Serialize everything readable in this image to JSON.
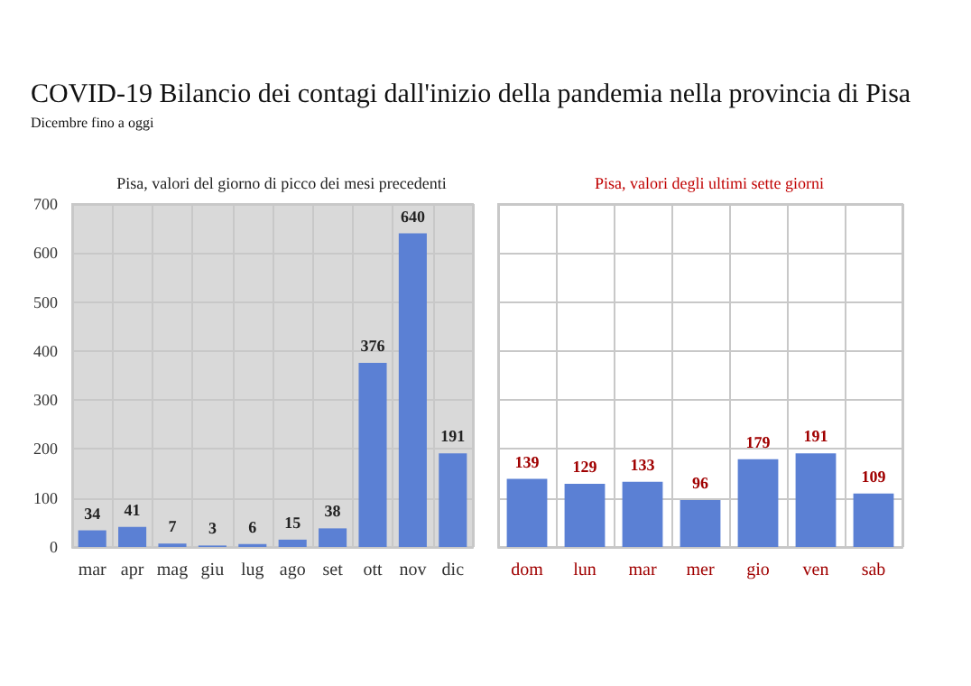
{
  "chart_data": [
    {
      "type": "bar",
      "title": "COVID-19 Bilancio dei contagi dall'inizio della pandemia nella provincia di Pisa",
      "subtitle": "Dicembre fino a oggi",
      "annotations": [
        "Pisa, valori del giorno di picco dei mesi precedenti"
      ],
      "categories": [
        "mar",
        "apr",
        "mag",
        "giu",
        "lug",
        "ago",
        "set",
        "ott",
        "nov",
        "dic"
      ],
      "values": [
        34,
        41,
        7,
        3,
        6,
        15,
        38,
        376,
        640,
        191
      ],
      "color": "#5b80d4",
      "ylim": [
        0,
        700
      ],
      "yticks": [
        0,
        100,
        200,
        300,
        400,
        500,
        600,
        700
      ],
      "grid": true,
      "data_labels": true
    },
    {
      "type": "bar",
      "title": "Pisa, valori degli ultimi sette giorni",
      "categories": [
        "dom",
        "lun",
        "mar",
        "mer",
        "gio",
        "ven",
        "sab"
      ],
      "values": [
        139,
        129,
        133,
        96,
        179,
        191,
        109
      ],
      "color": "#5b80d4",
      "ylim": [
        0,
        700
      ],
      "yticks": [
        0,
        100,
        200,
        300,
        400,
        500,
        600,
        700
      ],
      "grid": true,
      "data_labels": true,
      "tick_labels": "x"
    }
  ]
}
